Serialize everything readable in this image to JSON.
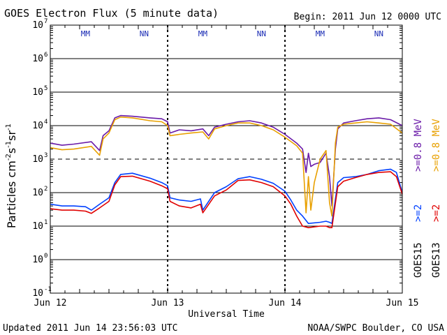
{
  "chart_data": {
    "type": "line",
    "title": "GOES Electron Flux (5 minute data)",
    "begin_label": "Begin: 2011 Jun 12 0000 UTC",
    "xlabel": "Universal Time",
    "ylabel_main": "Particles cm",
    "ylabel_sup1": "-2",
    "ylabel_mid1": "s",
    "ylabel_sup2": "-1",
    "ylabel_mid2": "sr",
    "ylabel_sup3": "-1",
    "x_unit": "days since 2011 Jun 12 00:00 UTC",
    "xlim": [
      0,
      3
    ],
    "y_scale": "log",
    "ylim_exponent": [
      -1,
      7
    ],
    "x_ticks": [
      {
        "x": 0,
        "label": "Jun 12"
      },
      {
        "x": 1,
        "label": "Jun 13"
      },
      {
        "x": 2,
        "label": "Jun 14"
      },
      {
        "x": 3,
        "label": "Jun 15"
      }
    ],
    "y_ticks": [
      {
        "exp": 7,
        "base": "10",
        "sup": "7"
      },
      {
        "exp": 6,
        "base": "10",
        "sup": "6"
      },
      {
        "exp": 5,
        "base": "10",
        "sup": "5"
      },
      {
        "exp": 4,
        "base": "10",
        "sup": "4"
      },
      {
        "exp": 3,
        "base": "10",
        "sup": "3"
      },
      {
        "exp": 2,
        "base": "10",
        "sup": "2"
      },
      {
        "exp": 1,
        "base": "10",
        "sup": "1"
      },
      {
        "exp": 0,
        "base": "10",
        "sup": "0"
      },
      {
        "exp": -1,
        "base": "10",
        "sup": "-1"
      }
    ],
    "threshold_exponent": 3,
    "markers": [
      {
        "x": 0.3,
        "label": "MM",
        "color": "#1a2bb5"
      },
      {
        "x": 0.8,
        "label": "NN",
        "color": "#1a2bb5"
      },
      {
        "x": 1.3,
        "label": "MM",
        "color": "#1a2bb5"
      },
      {
        "x": 1.8,
        "label": "NN",
        "color": "#1a2bb5"
      },
      {
        "x": 2.3,
        "label": "MM",
        "color": "#1a2bb5"
      },
      {
        "x": 2.8,
        "label": "NN",
        "color": "#1a2bb5"
      }
    ],
    "legend": {
      "placement": "right",
      "entries": [
        {
          "label": ">=0.8  MeV",
          "color": "#6a1aa8"
        },
        {
          "label": ">=0.8  MeV",
          "color": "#e8a000"
        },
        {
          "label": ">=2",
          "color": "#0040ff"
        },
        {
          "label": ">=2",
          "color": "#e00000"
        },
        {
          "label": "GOES15",
          "color": "#000000"
        },
        {
          "label": "GOES13",
          "color": "#000000"
        }
      ]
    },
    "series": [
      {
        "name": "GOES15 >=0.8 MeV",
        "color": "#6a1aa8",
        "x": [
          0,
          0.1,
          0.2,
          0.35,
          0.42,
          0.45,
          0.5,
          0.55,
          0.6,
          0.7,
          0.85,
          0.95,
          1.0,
          1.02,
          1.1,
          1.2,
          1.3,
          1.35,
          1.4,
          1.5,
          1.6,
          1.7,
          1.8,
          1.9,
          2.0,
          2.1,
          2.15,
          2.18,
          2.2,
          2.22,
          2.25,
          2.3,
          2.35,
          2.38,
          2.4,
          2.43,
          2.45,
          2.5,
          2.6,
          2.7,
          2.8,
          2.9,
          3.0
        ],
        "y": [
          3000,
          2600,
          2800,
          3300,
          1800,
          5000,
          7000,
          17000,
          20000,
          19000,
          17000,
          16000,
          13000,
          6000,
          7500,
          7000,
          8000,
          5000,
          9000,
          11000,
          13000,
          14000,
          12000,
          9000,
          5500,
          3000,
          2000,
          400,
          1500,
          600,
          700,
          800,
          1500,
          300,
          40,
          2000,
          8000,
          12000,
          14000,
          16000,
          17000,
          15000,
          10000
        ]
      },
      {
        "name": "GOES13 >=0.8 MeV",
        "color": "#e8a000",
        "x": [
          0,
          0.1,
          0.2,
          0.35,
          0.42,
          0.45,
          0.5,
          0.55,
          0.6,
          0.7,
          0.85,
          0.95,
          1.0,
          1.02,
          1.1,
          1.2,
          1.3,
          1.35,
          1.4,
          1.5,
          1.6,
          1.7,
          1.8,
          1.9,
          2.0,
          2.1,
          2.15,
          2.18,
          2.2,
          2.22,
          2.25,
          2.3,
          2.35,
          2.38,
          2.4,
          2.43,
          2.45,
          2.5,
          2.6,
          2.7,
          2.8,
          2.9,
          3.0
        ],
        "y": [
          2200,
          1900,
          2000,
          2400,
          1300,
          4000,
          6000,
          15000,
          18000,
          17000,
          14000,
          13000,
          10000,
          5000,
          5500,
          6000,
          6500,
          4000,
          8000,
          10000,
          12000,
          12000,
          10000,
          7500,
          4500,
          2500,
          1500,
          25,
          300,
          30,
          200,
          1000,
          1800,
          50,
          20,
          3000,
          9000,
          11000,
          12000,
          13000,
          12000,
          11000,
          6000
        ]
      },
      {
        "name": "GOES15 >=2 MeV",
        "color": "#0040ff",
        "x": [
          0,
          0.1,
          0.2,
          0.3,
          0.35,
          0.42,
          0.5,
          0.55,
          0.6,
          0.7,
          0.85,
          0.95,
          1.0,
          1.02,
          1.1,
          1.2,
          1.28,
          1.3,
          1.4,
          1.5,
          1.6,
          1.7,
          1.8,
          1.9,
          2.0,
          2.05,
          2.1,
          2.15,
          2.2,
          2.3,
          2.35,
          2.38,
          2.4,
          2.45,
          2.5,
          2.6,
          2.7,
          2.8,
          2.9,
          2.95,
          3.0
        ],
        "y": [
          45,
          40,
          40,
          38,
          30,
          45,
          70,
          200,
          350,
          380,
          270,
          200,
          160,
          70,
          60,
          55,
          65,
          30,
          100,
          150,
          260,
          300,
          250,
          190,
          110,
          60,
          30,
          20,
          12,
          13,
          14,
          13,
          12,
          200,
          280,
          300,
          350,
          450,
          500,
          400,
          100
        ]
      },
      {
        "name": "GOES13 >=2 MeV",
        "color": "#e00000",
        "x": [
          0,
          0.1,
          0.2,
          0.3,
          0.35,
          0.42,
          0.5,
          0.55,
          0.6,
          0.7,
          0.85,
          0.95,
          1.0,
          1.02,
          1.1,
          1.2,
          1.28,
          1.3,
          1.4,
          1.5,
          1.6,
          1.7,
          1.8,
          1.9,
          2.0,
          2.05,
          2.1,
          2.15,
          2.2,
          2.3,
          2.35,
          2.38,
          2.4,
          2.45,
          2.5,
          2.6,
          2.7,
          2.8,
          2.9,
          2.95,
          3.0
        ],
        "y": [
          33,
          30,
          30,
          28,
          24,
          35,
          55,
          170,
          300,
          310,
          220,
          160,
          130,
          55,
          40,
          35,
          45,
          25,
          80,
          120,
          230,
          240,
          200,
          150,
          80,
          45,
          20,
          10,
          9,
          10,
          10,
          9,
          9,
          150,
          220,
          280,
          350,
          400,
          420,
          300,
          90
        ]
      }
    ]
  },
  "footer": {
    "updated": "Updated 2011 Jun 14 23:56:03 UTC",
    "credit": "NOAA/SWPC Boulder, CO USA"
  }
}
